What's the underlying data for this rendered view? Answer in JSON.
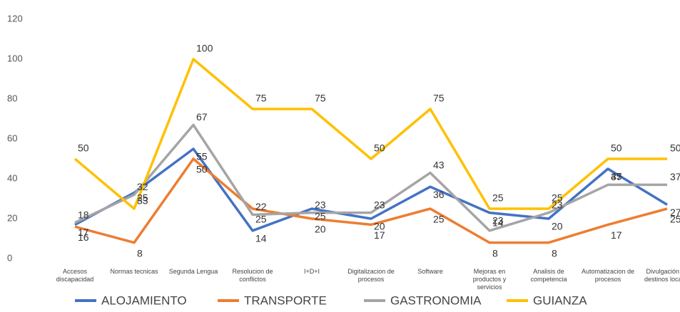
{
  "chart_data": {
    "type": "line",
    "categories": [
      "Accesos discapacidad",
      "Normas tecnicas",
      "Segunda Lengua",
      "Resolucion de conflictos",
      "I+D+I",
      "Digitalizacion de procesos",
      "Software",
      "Mejoras en productos y servicios",
      "Analisis de competencia",
      "Automatizacion de procesos",
      "Divulgación de destinos locales"
    ],
    "series": [
      {
        "name": "ALOJAMIENTO",
        "color": "#4472c4",
        "values": [
          17,
          33,
          55,
          14,
          25,
          20,
          36,
          23,
          20,
          45,
          27
        ]
      },
      {
        "name": "TRANSPORTE",
        "color": "#ed7d31",
        "values": [
          16,
          8,
          50,
          25,
          20,
          17,
          25,
          8,
          8,
          17,
          25
        ]
      },
      {
        "name": "GASTRONOMIA",
        "color": "#a5a5a5",
        "values": [
          18,
          32,
          67,
          22,
          23,
          23,
          43,
          14,
          23,
          37,
          37
        ]
      },
      {
        "name": "GUIANZA",
        "color": "#ffc000",
        "values": [
          50,
          25,
          100,
          75,
          75,
          50,
          75,
          25,
          25,
          50,
          50
        ]
      }
    ],
    "ylim": [
      0,
      120
    ],
    "yticks": [
      0,
      20,
      40,
      60,
      80,
      100,
      120
    ],
    "grid": false,
    "legend": "bottom"
  }
}
